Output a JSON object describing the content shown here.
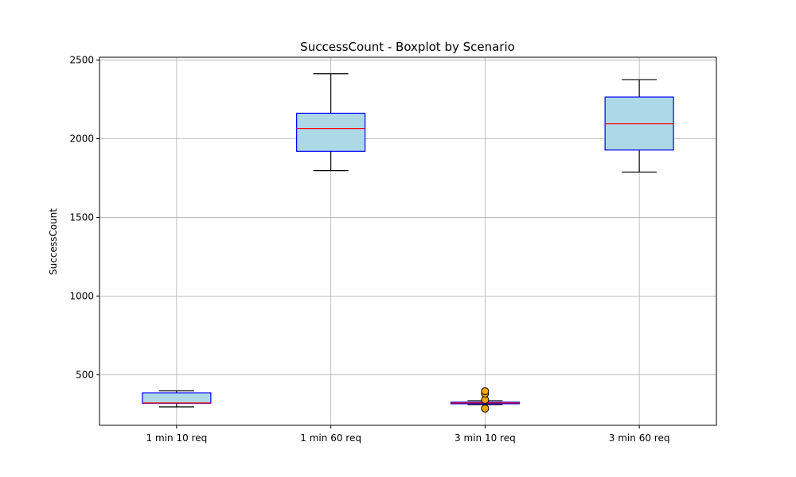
{
  "chart_data": {
    "type": "boxplot",
    "title": "SuccessCount - Boxplot by Scenario",
    "ylabel": "SuccessCount",
    "xlabel": "",
    "ylim": [
      178,
      2518
    ],
    "yticks": [
      500,
      1000,
      1500,
      2000,
      2500
    ],
    "grid": true,
    "categories": [
      "1 min 10 req",
      "1 min 60 req",
      "3 min 10 req",
      "3 min 60 req"
    ],
    "boxes": [
      {
        "whisker_low": 295,
        "q1": 318,
        "median": 320,
        "q3": 385,
        "whisker_high": 397,
        "outliers": []
      },
      {
        "whisker_low": 1797,
        "q1": 1920,
        "median": 2065,
        "q3": 2162,
        "whisker_high": 2413,
        "outliers": []
      },
      {
        "whisker_low": 310,
        "q1": 315,
        "median": 320,
        "q3": 325,
        "whisker_high": 335,
        "outliers": [
          285,
          340,
          380,
          395
        ]
      },
      {
        "whisker_low": 1788,
        "q1": 1928,
        "median": 2095,
        "q3": 2265,
        "whisker_high": 2375,
        "outliers": []
      }
    ],
    "colors": {
      "box_fill": "#add8e6",
      "box_edge": "#0000ff",
      "median": "#ff0000",
      "whisker": "#000000",
      "outlier_fill": "#ffa500",
      "outlier_edge": "#000000",
      "grid": "#b0b0b0"
    }
  }
}
